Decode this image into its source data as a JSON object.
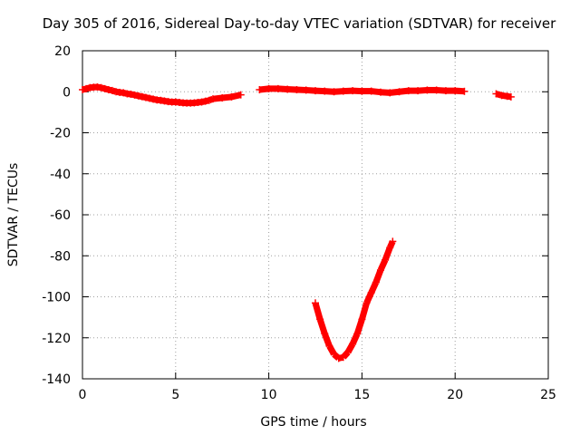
{
  "chart_data": {
    "type": "scatter",
    "title": "Day 305 of 2016, Sidereal Day-to-day VTEC variation (SDTVAR) for receiver",
    "xlabel": "GPS time / hours",
    "ylabel": "SDTVAR / TECUs",
    "xlim": [
      0,
      25
    ],
    "ylim": [
      -140,
      20
    ],
    "xticks": [
      0,
      5,
      10,
      15,
      20,
      25
    ],
    "yticks": [
      20,
      0,
      -20,
      -40,
      -60,
      -80,
      -100,
      -120,
      -140
    ],
    "grid": true,
    "legend": "none",
    "series": [
      {
        "color": "#ff0000",
        "x": [
          0.0,
          0.2,
          0.4,
          0.6,
          0.8,
          1.0,
          1.2,
          1.4,
          1.6,
          1.8,
          2.0,
          2.2,
          2.4,
          2.6,
          2.8,
          3.0,
          3.2,
          3.4,
          3.6,
          3.8,
          4.0,
          4.2,
          4.4,
          4.6,
          4.8,
          5.0,
          5.2,
          5.4,
          5.6,
          5.8,
          6.0,
          6.2,
          6.4,
          6.6,
          6.8,
          7.0,
          7.5,
          8.0,
          8.5,
          9.5,
          10.0,
          10.5,
          11.0,
          11.5,
          12.0,
          12.5,
          13.0,
          13.5,
          14.0,
          14.5,
          15.0,
          15.5,
          16.0,
          16.5,
          17.0,
          17.5,
          18.0,
          18.5,
          19.0,
          19.5,
          20.0,
          20.5,
          22.2,
          22.5,
          22.8,
          23.0
        ],
        "y": [
          1.0,
          1.5,
          2.0,
          2.2,
          2.3,
          2.0,
          1.5,
          1.0,
          0.6,
          0.0,
          -0.3,
          -0.5,
          -1.0,
          -1.2,
          -1.6,
          -2.0,
          -2.4,
          -2.8,
          -3.2,
          -3.6,
          -4.0,
          -4.2,
          -4.5,
          -4.8,
          -5.0,
          -5.0,
          -5.2,
          -5.4,
          -5.5,
          -5.5,
          -5.4,
          -5.2,
          -5.0,
          -4.6,
          -4.2,
          -3.5,
          -3.0,
          -2.5,
          -1.5,
          1.0,
          1.5,
          1.5,
          1.2,
          1.0,
          0.8,
          0.5,
          0.3,
          0.0,
          0.3,
          0.5,
          0.3,
          0.3,
          -0.2,
          -0.5,
          0.0,
          0.5,
          0.5,
          0.8,
          0.8,
          0.5,
          0.5,
          0.2,
          -1.0,
          -1.8,
          -2.2,
          -2.5
        ]
      },
      {
        "color": "#ff0000",
        "x": [
          12.5,
          12.75,
          13.0,
          13.25,
          13.5,
          13.75,
          14.0,
          14.25,
          14.5,
          14.75,
          15.0,
          15.25,
          15.5,
          15.75,
          16.0,
          16.25,
          16.5,
          16.65
        ],
        "y": [
          -103,
          -111,
          -118,
          -124,
          -128,
          -130,
          -129.5,
          -127,
          -123,
          -118,
          -111,
          -103,
          -98,
          -93,
          -87,
          -82,
          -76,
          -73
        ]
      }
    ]
  }
}
